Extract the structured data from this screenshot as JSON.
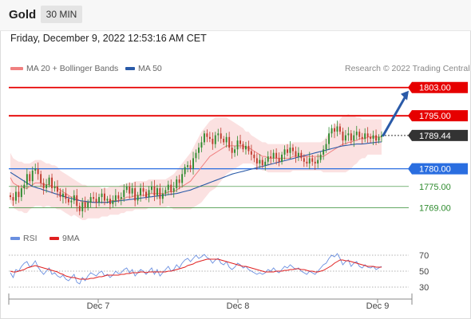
{
  "header": {
    "symbol": "Gold",
    "timeframe": "30 MIN"
  },
  "datetime": "Friday, December 9, 2022 12:53:16 AM CET",
  "legend": {
    "main": [
      {
        "label": "MA 20 + Bollinger Bands",
        "color": "#f08080"
      },
      {
        "label": "MA 50",
        "color": "#2a5aa8"
      }
    ],
    "rsi": [
      {
        "label": "RSI",
        "color": "#6a8fe0"
      },
      {
        "label": "9MA",
        "color": "#e02020"
      }
    ]
  },
  "credit": "Research © 2022 Trading Central",
  "colors": {
    "resistance": "#e60000",
    "support_primary": "#2a6ee0",
    "support_secondary": "#2e8b2e",
    "last": "#333333",
    "bull": "#2e8b2e",
    "bear": "#c0392b",
    "band": "#fadcdc",
    "arrow": "#2a5aa8"
  },
  "chart_data": [
    {
      "type": "candlestick",
      "title": "Gold",
      "timeframe": "30 MIN",
      "ylim": [
        1763,
        1807
      ],
      "x_ticks": [
        "Dec 7",
        "Dec 8",
        "Dec 9"
      ],
      "levels": [
        {
          "value": 1803.0,
          "label": "1803.00",
          "style": "resistance",
          "kind": "tag"
        },
        {
          "value": 1795.0,
          "label": "1795.00",
          "style": "resistance",
          "kind": "tag"
        },
        {
          "value": 1789.44,
          "label": "1789.44",
          "style": "last",
          "kind": "tag"
        },
        {
          "value": 1780.0,
          "label": "1780.00",
          "style": "support_primary",
          "kind": "tag"
        },
        {
          "value": 1775.0,
          "label": "1775.00",
          "style": "support_secondary",
          "kind": "text"
        },
        {
          "value": 1769.0,
          "label": "1769.00",
          "style": "support_secondary",
          "kind": "text"
        }
      ],
      "closes": [
        1772.0,
        1771.0,
        1773.5,
        1772.0,
        1774.5,
        1775.5,
        1778.5,
        1776.5,
        1779.5,
        1780.0,
        1778.5,
        1776.0,
        1774.5,
        1775.5,
        1777.5,
        1774.5,
        1775.0,
        1773.5,
        1772.0,
        1773.0,
        1771.5,
        1770.5,
        1771.0,
        1772.5,
        1769.5,
        1768.0,
        1770.5,
        1769.0,
        1770.5,
        1772.0,
        1771.5,
        1770.5,
        1772.0,
        1773.0,
        1771.0,
        1771.5,
        1770.0,
        1771.0,
        1772.5,
        1771.5,
        1772.0,
        1774.0,
        1775.0,
        1773.0,
        1774.5,
        1771.0,
        1772.5,
        1774.5,
        1773.5,
        1772.0,
        1774.0,
        1775.0,
        1772.5,
        1774.5,
        1771.5,
        1773.0,
        1774.0,
        1775.5,
        1773.5,
        1774.5,
        1777.0,
        1776.0,
        1778.5,
        1780.5,
        1781.0,
        1780.0,
        1783.0,
        1784.5,
        1786.0,
        1787.5,
        1790.0,
        1789.0,
        1788.5,
        1787.0,
        1789.5,
        1790.0,
        1788.5,
        1787.5,
        1789.0,
        1786.0,
        1784.5,
        1785.5,
        1788.0,
        1787.0,
        1785.5,
        1786.5,
        1785.0,
        1784.0,
        1783.0,
        1781.5,
        1782.5,
        1781.0,
        1782.0,
        1783.5,
        1783.0,
        1784.5,
        1783.0,
        1782.0,
        1784.0,
        1785.5,
        1784.5,
        1786.0,
        1785.0,
        1783.5,
        1784.5,
        1783.0,
        1782.0,
        1781.5,
        1783.0,
        1782.0,
        1781.5,
        1782.5,
        1784.0,
        1785.5,
        1787.0,
        1790.0,
        1791.5,
        1790.5,
        1792.0,
        1790.5,
        1788.0,
        1789.5,
        1790.0,
        1788.0,
        1789.5,
        1790.5,
        1789.0,
        1788.5,
        1790.0,
        1789.0,
        1788.5,
        1789.5,
        1788.0,
        1789.0,
        1789.44
      ],
      "ma20": [
        1777.5,
        1776.0,
        1775.5,
        1775.0,
        1775.0,
        1774.5,
        1774.5,
        1775.0,
        1775.5,
        1776.0,
        1776.0,
        1776.0,
        1775.5,
        1775.5,
        1775.5,
        1775.0,
        1775.0,
        1774.5,
        1774.0,
        1773.5,
        1773.0,
        1772.5,
        1772.0,
        1772.0,
        1771.5,
        1771.0,
        1770.5,
        1770.5,
        1770.5,
        1770.5,
        1770.5,
        1770.5,
        1770.5,
        1770.5,
        1770.5,
        1770.5,
        1771.0,
        1771.0,
        1771.0,
        1771.0,
        1771.5,
        1771.5,
        1772.0,
        1772.0,
        1772.0,
        1772.5,
        1772.5,
        1772.5,
        1772.5,
        1772.5,
        1773.0,
        1773.0,
        1773.0,
        1773.0,
        1773.0,
        1773.0,
        1773.0,
        1773.5,
        1773.5,
        1773.5,
        1774.0,
        1774.5,
        1775.0,
        1775.5,
        1776.0,
        1776.5,
        1777.5,
        1778.5,
        1779.5,
        1780.5,
        1781.5,
        1782.5,
        1783.5,
        1784.0,
        1784.5,
        1785.0,
        1785.5,
        1786.0,
        1786.5,
        1786.5,
        1786.5,
        1786.5,
        1786.5,
        1786.5,
        1786.5,
        1786.0,
        1786.0,
        1785.5,
        1785.0,
        1784.5,
        1784.0,
        1783.5,
        1783.5,
        1783.0,
        1783.0,
        1783.0,
        1783.0,
        1783.0,
        1783.0,
        1783.0,
        1783.0,
        1783.0,
        1783.5,
        1783.5,
        1783.5,
        1783.5,
        1783.5,
        1783.5,
        1783.5,
        1783.5,
        1783.5,
        1783.5,
        1783.5,
        1783.5,
        1784.0,
        1784.5,
        1785.0,
        1785.5,
        1786.0,
        1786.5,
        1787.0,
        1787.0,
        1787.5,
        1787.5,
        1788.0,
        1788.0,
        1788.5,
        1788.5,
        1788.5,
        1789.0,
        1789.0,
        1789.0,
        1789.0,
        1789.0,
        1789.0
      ],
      "ma50": [
        1779.0,
        1778.5,
        1778.0,
        1777.5,
        1777.0,
        1776.5,
        1776.0,
        1775.5,
        1775.0,
        1774.8,
        1774.5,
        1774.3,
        1774.0,
        1773.8,
        1773.5,
        1773.3,
        1773.0,
        1772.8,
        1772.5,
        1772.3,
        1772.0,
        1771.8,
        1771.6,
        1771.4,
        1771.2,
        1771.0,
        1770.9,
        1770.8,
        1770.7,
        1770.6,
        1770.5,
        1770.5,
        1770.5,
        1770.5,
        1770.5,
        1770.5,
        1770.6,
        1770.7,
        1770.8,
        1770.9,
        1771.0,
        1771.1,
        1771.2,
        1771.3,
        1771.4,
        1771.5,
        1771.6,
        1771.7,
        1771.8,
        1771.9,
        1772.0,
        1772.1,
        1772.2,
        1772.3,
        1772.4,
        1772.5,
        1772.6,
        1772.7,
        1772.8,
        1772.9,
        1773.0,
        1773.2,
        1773.4,
        1773.6,
        1773.8,
        1774.0,
        1774.3,
        1774.6,
        1774.9,
        1775.2,
        1775.5,
        1775.8,
        1776.1,
        1776.4,
        1776.7,
        1777.0,
        1777.3,
        1777.6,
        1777.9,
        1778.2,
        1778.5,
        1778.7,
        1778.9,
        1779.1,
        1779.3,
        1779.5,
        1779.7,
        1779.9,
        1780.1,
        1780.3,
        1780.5,
        1780.7,
        1780.9,
        1781.1,
        1781.3,
        1781.5,
        1781.7,
        1781.9,
        1782.1,
        1782.3,
        1782.5,
        1782.7,
        1782.9,
        1783.1,
        1783.3,
        1783.5,
        1783.7,
        1783.9,
        1784.1,
        1784.3,
        1784.5,
        1784.7,
        1784.9,
        1785.1,
        1785.3,
        1785.5,
        1785.7,
        1785.9,
        1786.1,
        1786.3,
        1786.5,
        1786.6,
        1786.7,
        1786.8,
        1786.9,
        1787.0,
        1787.0,
        1787.0,
        1787.1,
        1787.2,
        1787.3,
        1787.4,
        1787.5,
        1787.6,
        1787.6
      ],
      "band_width": [
        7,
        7,
        7,
        7,
        7,
        7,
        7,
        6.5,
        6.5,
        6.5,
        6.5,
        6.5,
        6.5,
        6,
        6,
        6,
        6,
        6,
        5.5,
        5.5,
        5.5,
        5.5,
        5.5,
        5,
        5,
        5,
        5,
        5,
        4.5,
        4.5,
        4.5,
        4.5,
        4.5,
        4,
        4,
        4,
        4,
        4,
        4,
        4,
        4,
        4,
        4,
        4,
        4,
        4,
        4,
        4,
        4,
        4,
        4,
        4,
        4,
        4,
        4,
        4,
        4,
        4,
        4.5,
        5,
        5.5,
        6,
        6.5,
        7,
        7.5,
        8,
        8.5,
        9,
        9.5,
        10,
        10,
        10,
        10,
        10,
        10,
        9.5,
        9,
        8.5,
        8,
        7.5,
        7,
        6.5,
        6,
        5.5,
        5,
        4.5,
        4.5,
        4,
        4,
        4,
        4,
        4,
        4,
        4,
        4,
        4,
        4,
        4,
        4,
        4,
        4,
        4,
        4,
        4,
        4,
        4,
        4,
        4,
        4,
        4,
        4,
        4,
        4,
        4.5,
        5,
        5.5,
        6,
        6.5,
        7,
        7.5,
        8,
        8,
        8,
        7.5,
        7,
        6.5,
        6,
        5.5,
        5.5,
        5,
        5,
        5,
        5,
        5,
        5,
        5,
        5,
        5
      ],
      "projection": {
        "from": 1789.44,
        "to": 1803.0
      }
    },
    {
      "type": "line",
      "title": "RSI",
      "ylim": [
        20,
        80
      ],
      "y_ticks": [
        70,
        50,
        30
      ],
      "series": [
        {
          "name": "RSI",
          "values": [
            48,
            42,
            52,
            50,
            56,
            60,
            62,
            55,
            58,
            63,
            55,
            50,
            46,
            50,
            54,
            46,
            48,
            44,
            42,
            45,
            40,
            38,
            42,
            46,
            36,
            34,
            42,
            38,
            44,
            48,
            46,
            44,
            48,
            50,
            44,
            46,
            42,
            45,
            50,
            47,
            48,
            52,
            54,
            48,
            52,
            44,
            48,
            52,
            50,
            46,
            50,
            54,
            46,
            52,
            44,
            48,
            52,
            56,
            50,
            52,
            58,
            54,
            60,
            64,
            66,
            62,
            66,
            70,
            66,
            68,
            71,
            67,
            65,
            60,
            64,
            66,
            60,
            58,
            62,
            55,
            52,
            55,
            60,
            58,
            54,
            56,
            52,
            50,
            48,
            46,
            48,
            46,
            48,
            52,
            50,
            54,
            50,
            48,
            52,
            56,
            54,
            58,
            55,
            52,
            54,
            50,
            48,
            46,
            50,
            48,
            46,
            50,
            54,
            58,
            60,
            66,
            70,
            68,
            72,
            66,
            58,
            62,
            64,
            56,
            60,
            62,
            56,
            54,
            58,
            55,
            54,
            56,
            52,
            54,
            56
          ]
        },
        {
          "name": "9MA",
          "values": [
            50,
            49,
            49,
            50,
            51,
            52,
            54,
            55,
            56,
            57,
            56,
            55,
            54,
            53,
            52,
            51,
            50,
            49,
            47,
            46,
            44,
            43,
            42,
            42,
            41,
            40,
            40,
            40,
            40,
            41,
            41,
            42,
            43,
            43,
            44,
            45,
            45,
            45,
            45,
            45,
            46,
            46,
            47,
            47,
            48,
            48,
            48,
            49,
            49,
            48,
            49,
            49,
            49,
            49,
            49,
            49,
            49,
            50,
            50,
            51,
            52,
            53,
            54,
            55,
            57,
            58,
            59,
            61,
            62,
            63,
            64,
            65,
            65,
            65,
            65,
            65,
            64,
            63,
            62,
            61,
            60,
            59,
            58,
            57,
            56,
            56,
            55,
            54,
            53,
            52,
            51,
            50,
            49,
            49,
            49,
            49,
            50,
            50,
            50,
            51,
            51,
            52,
            52,
            53,
            53,
            52,
            52,
            51,
            50,
            50,
            49,
            49,
            50,
            51,
            53,
            55,
            57,
            60,
            62,
            64,
            64,
            63,
            63,
            62,
            61,
            60,
            59,
            58,
            57,
            56,
            56,
            56,
            55,
            55,
            55
          ]
        }
      ]
    }
  ]
}
